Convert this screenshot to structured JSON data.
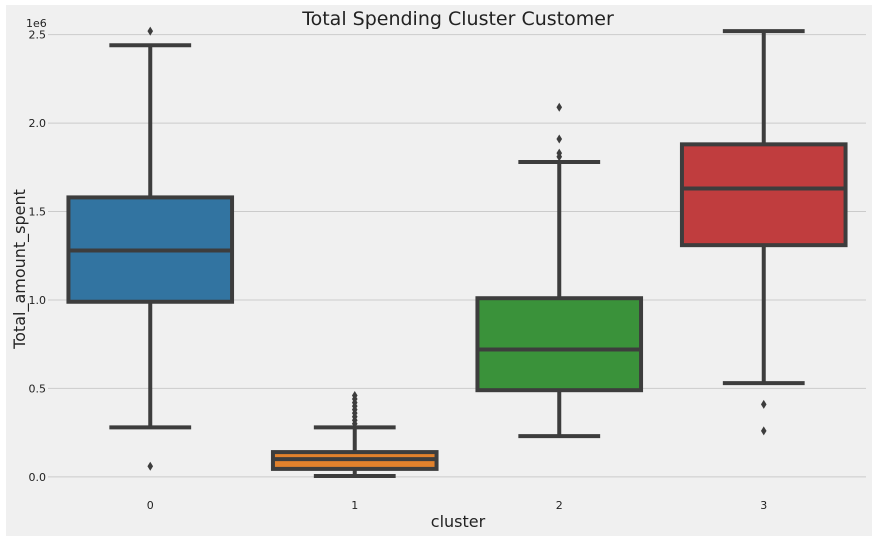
{
  "chart_data": {
    "type": "box",
    "title": "Total Spending Cluster Customer",
    "xlabel": "cluster",
    "ylabel": "Total_amount_spent",
    "y_offset_label": "1e6",
    "categories": [
      "0",
      "1",
      "2",
      "3"
    ],
    "ylim": [
      -0.08,
      2.6
    ],
    "yticks": [
      {
        "value": 0.0,
        "label": "0.0"
      },
      {
        "value": 0.5,
        "label": "0.5"
      },
      {
        "value": 1.0,
        "label": "1.0"
      },
      {
        "value": 1.5,
        "label": "1.5"
      },
      {
        "value": 2.0,
        "label": "2.0"
      },
      {
        "value": 2.5,
        "label": "2.5"
      }
    ],
    "grid": true,
    "boxes": [
      {
        "category": "0",
        "color": "#3274a1",
        "whisker_low": 0.28,
        "q1": 0.99,
        "median": 1.28,
        "q3": 1.58,
        "whisker_high": 2.44,
        "outliers": [
          0.06,
          2.52
        ]
      },
      {
        "category": "1",
        "color": "#e1812c",
        "whisker_low": 0.005,
        "q1": 0.045,
        "median": 0.1,
        "q3": 0.14,
        "whisker_high": 0.28,
        "outliers": [
          0.3,
          0.32,
          0.34,
          0.36,
          0.38,
          0.4,
          0.42,
          0.44,
          0.46
        ]
      },
      {
        "category": "2",
        "color": "#3a923a",
        "whisker_low": 0.23,
        "q1": 0.49,
        "median": 0.72,
        "q3": 1.01,
        "whisker_high": 1.78,
        "outliers": [
          1.81,
          1.83,
          1.91,
          2.09
        ]
      },
      {
        "category": "3",
        "color": "#c03d3e",
        "whisker_low": 0.53,
        "q1": 1.31,
        "median": 1.63,
        "q3": 1.88,
        "whisker_high": 2.52,
        "outliers": [
          0.26,
          0.41
        ]
      }
    ]
  }
}
